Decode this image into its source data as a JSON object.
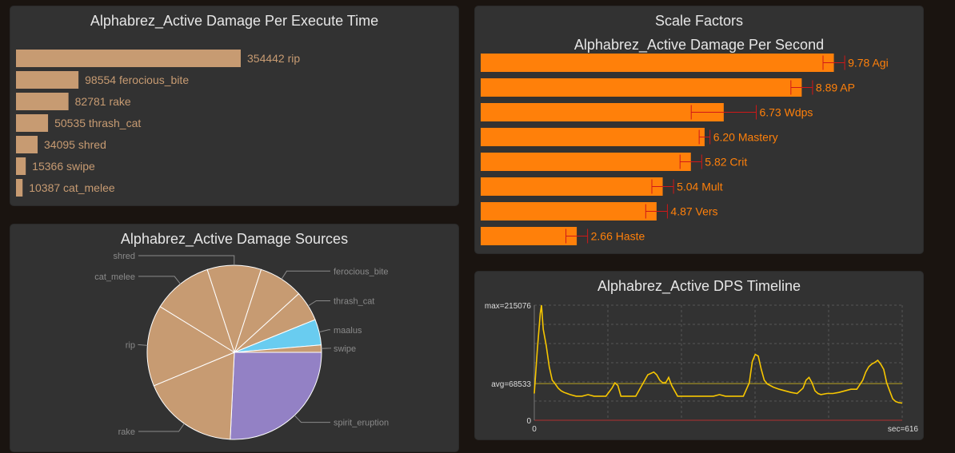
{
  "colors": {
    "tan": "#C79B72",
    "orange": "#FF800A",
    "errorbar": "#d01818",
    "timeline_line": "#F7C600",
    "avg_line": "#b8a222",
    "pie_blue": "#69CCF0",
    "pie_purple": "#9381C5",
    "panel_bg": "#323232",
    "page_bg": "#1a1410"
  },
  "panels": {
    "execute": {
      "title": "Alphabrez_Active Damage Per Execute Time"
    },
    "scale": {
      "title": "Scale Factors",
      "subtitle": "Alphabrez_Active Damage Per Second"
    },
    "sources": {
      "title": "Alphabrez_Active Damage Sources"
    },
    "timeline": {
      "title": "Alphabrez_Active DPS Timeline"
    }
  },
  "chart_data": [
    {
      "id": "execute",
      "type": "bar",
      "orientation": "horizontal",
      "title": "Alphabrez_Active Damage Per Execute Time",
      "categories": [
        "rip",
        "ferocious_bite",
        "rake",
        "thrash_cat",
        "shred",
        "swipe",
        "cat_melee"
      ],
      "values": [
        354442,
        98554,
        82781,
        50535,
        34095,
        15366,
        10387
      ],
      "xlim": [
        0,
        354442
      ],
      "grid": false
    },
    {
      "id": "scale",
      "type": "bar",
      "orientation": "horizontal",
      "title": "Scale Factors",
      "subtitle": "Alphabrez_Active Damage Per Second",
      "categories": [
        "Agi",
        "AP",
        "Wdps",
        "Mastery",
        "Crit",
        "Mult",
        "Vers",
        "Haste"
      ],
      "values": [
        9.78,
        8.89,
        6.73,
        6.2,
        5.82,
        5.04,
        4.87,
        2.66
      ],
      "error": [
        0.3,
        0.3,
        0.9,
        0.15,
        0.3,
        0.3,
        0.3,
        0.3
      ],
      "value_labels": [
        "9.78",
        "8.89",
        "6.73",
        "6.20",
        "5.82",
        "5.04",
        "4.87",
        "2.66"
      ],
      "xlim": [
        0,
        10.1
      ],
      "grid": false
    },
    {
      "id": "sources",
      "type": "pie",
      "title": "Alphabrez_Active Damage Sources",
      "slices": [
        {
          "label": "spirit_eruption",
          "value": 26.5,
          "color": "#9381C5"
        },
        {
          "label": "rake",
          "value": 18.5,
          "color": "#C79B72"
        },
        {
          "label": "rip",
          "value": 15.5,
          "color": "#C79B72"
        },
        {
          "label": "cat_melee",
          "value": 11.5,
          "color": "#C79B72"
        },
        {
          "label": "shred",
          "value": 10.3,
          "color": "#C79B72"
        },
        {
          "label": "ferocious_bite",
          "value": 8.5,
          "color": "#C79B72"
        },
        {
          "label": "thrash_cat",
          "value": 5.8,
          "color": "#C79B72"
        },
        {
          "label": "maalus",
          "value": 4.9,
          "color": "#69CCF0"
        },
        {
          "label": "swipe",
          "value": 1.4,
          "color": "#C79B72"
        }
      ],
      "legend": "none"
    },
    {
      "id": "timeline",
      "type": "area",
      "title": "Alphabrez_Active DPS Timeline",
      "xlim": [
        0,
        616
      ],
      "ylim": [
        0,
        215076
      ],
      "x_labels": [
        "0",
        "sec=616"
      ],
      "y_labels": [
        "max=215076",
        "avg=68533",
        "0"
      ],
      "avg": 68533,
      "grid": true,
      "x": [
        0,
        5,
        10,
        12,
        15,
        20,
        25,
        30,
        35,
        40,
        45,
        50,
        55,
        60,
        70,
        80,
        90,
        100,
        110,
        120,
        130,
        135,
        140,
        145,
        150,
        160,
        170,
        180,
        190,
        200,
        205,
        210,
        215,
        220,
        225,
        230,
        240,
        250,
        260,
        270,
        280,
        290,
        300,
        310,
        320,
        330,
        340,
        350,
        360,
        365,
        370,
        375,
        380,
        385,
        390,
        400,
        410,
        420,
        430,
        440,
        450,
        455,
        460,
        465,
        470,
        475,
        480,
        490,
        500,
        510,
        520,
        530,
        540,
        550,
        555,
        560,
        565,
        570,
        575,
        580,
        585,
        590,
        595,
        600,
        605,
        610,
        616
      ],
      "y": [
        50000,
        130000,
        200000,
        215076,
        170000,
        140000,
        100000,
        75000,
        68000,
        60000,
        55000,
        52000,
        50000,
        48000,
        45000,
        45000,
        48000,
        45000,
        45000,
        45000,
        60000,
        70000,
        65000,
        45000,
        45000,
        45000,
        45000,
        65000,
        85000,
        90000,
        85000,
        75000,
        70000,
        70000,
        80000,
        65000,
        45000,
        45000,
        45000,
        45000,
        45000,
        45000,
        45000,
        48000,
        45000,
        45000,
        45000,
        45000,
        70000,
        110000,
        123000,
        120000,
        95000,
        75000,
        68000,
        62000,
        58000,
        55000,
        52000,
        50000,
        60000,
        75000,
        80000,
        70000,
        55000,
        50000,
        48000,
        50000,
        50000,
        52000,
        55000,
        58000,
        58000,
        75000,
        90000,
        100000,
        105000,
        108000,
        112000,
        105000,
        95000,
        70000,
        55000,
        40000,
        35000,
        33000,
        32000
      ]
    }
  ]
}
